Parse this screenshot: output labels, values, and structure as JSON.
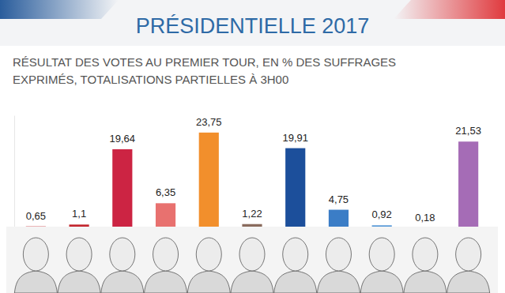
{
  "chart_data": {
    "type": "bar",
    "title": "PRÉSIDENTIELLE 2017",
    "subtitle": [
      "RÉSULTAT DES VOTES AU PREMIER TOUR, EN % DES SUFFRAGES",
      "EXPRIMÉS, TOTALISATIONS PARTIELLES À 3H00"
    ],
    "categories": [
      null,
      null,
      null,
      null,
      null,
      null,
      null,
      null,
      null,
      null,
      null
    ],
    "values": [
      0.65,
      1.1,
      19.64,
      6.35,
      23.75,
      1.22,
      19.91,
      4.75,
      0.92,
      0.18,
      21.53
    ],
    "value_labels": [
      "0,65",
      "1,1",
      "19,64",
      "6,35",
      "23,75",
      "1,22",
      "19,91",
      "4,75",
      "0,92",
      "0,18",
      "21,53"
    ],
    "colors": [
      "#c3262e",
      "#c3262e",
      "#cc2443",
      "#e8716f",
      "#f28f2c",
      "#8a6b5d",
      "#1c4f9b",
      "#3b7dc6",
      "#5b9bd8",
      "#8c8c8c",
      "#a56cb6"
    ],
    "ylim": [
      0,
      28
    ],
    "yticks": [],
    "grid": false,
    "data_labels": true,
    "tick_labels": false
  }
}
